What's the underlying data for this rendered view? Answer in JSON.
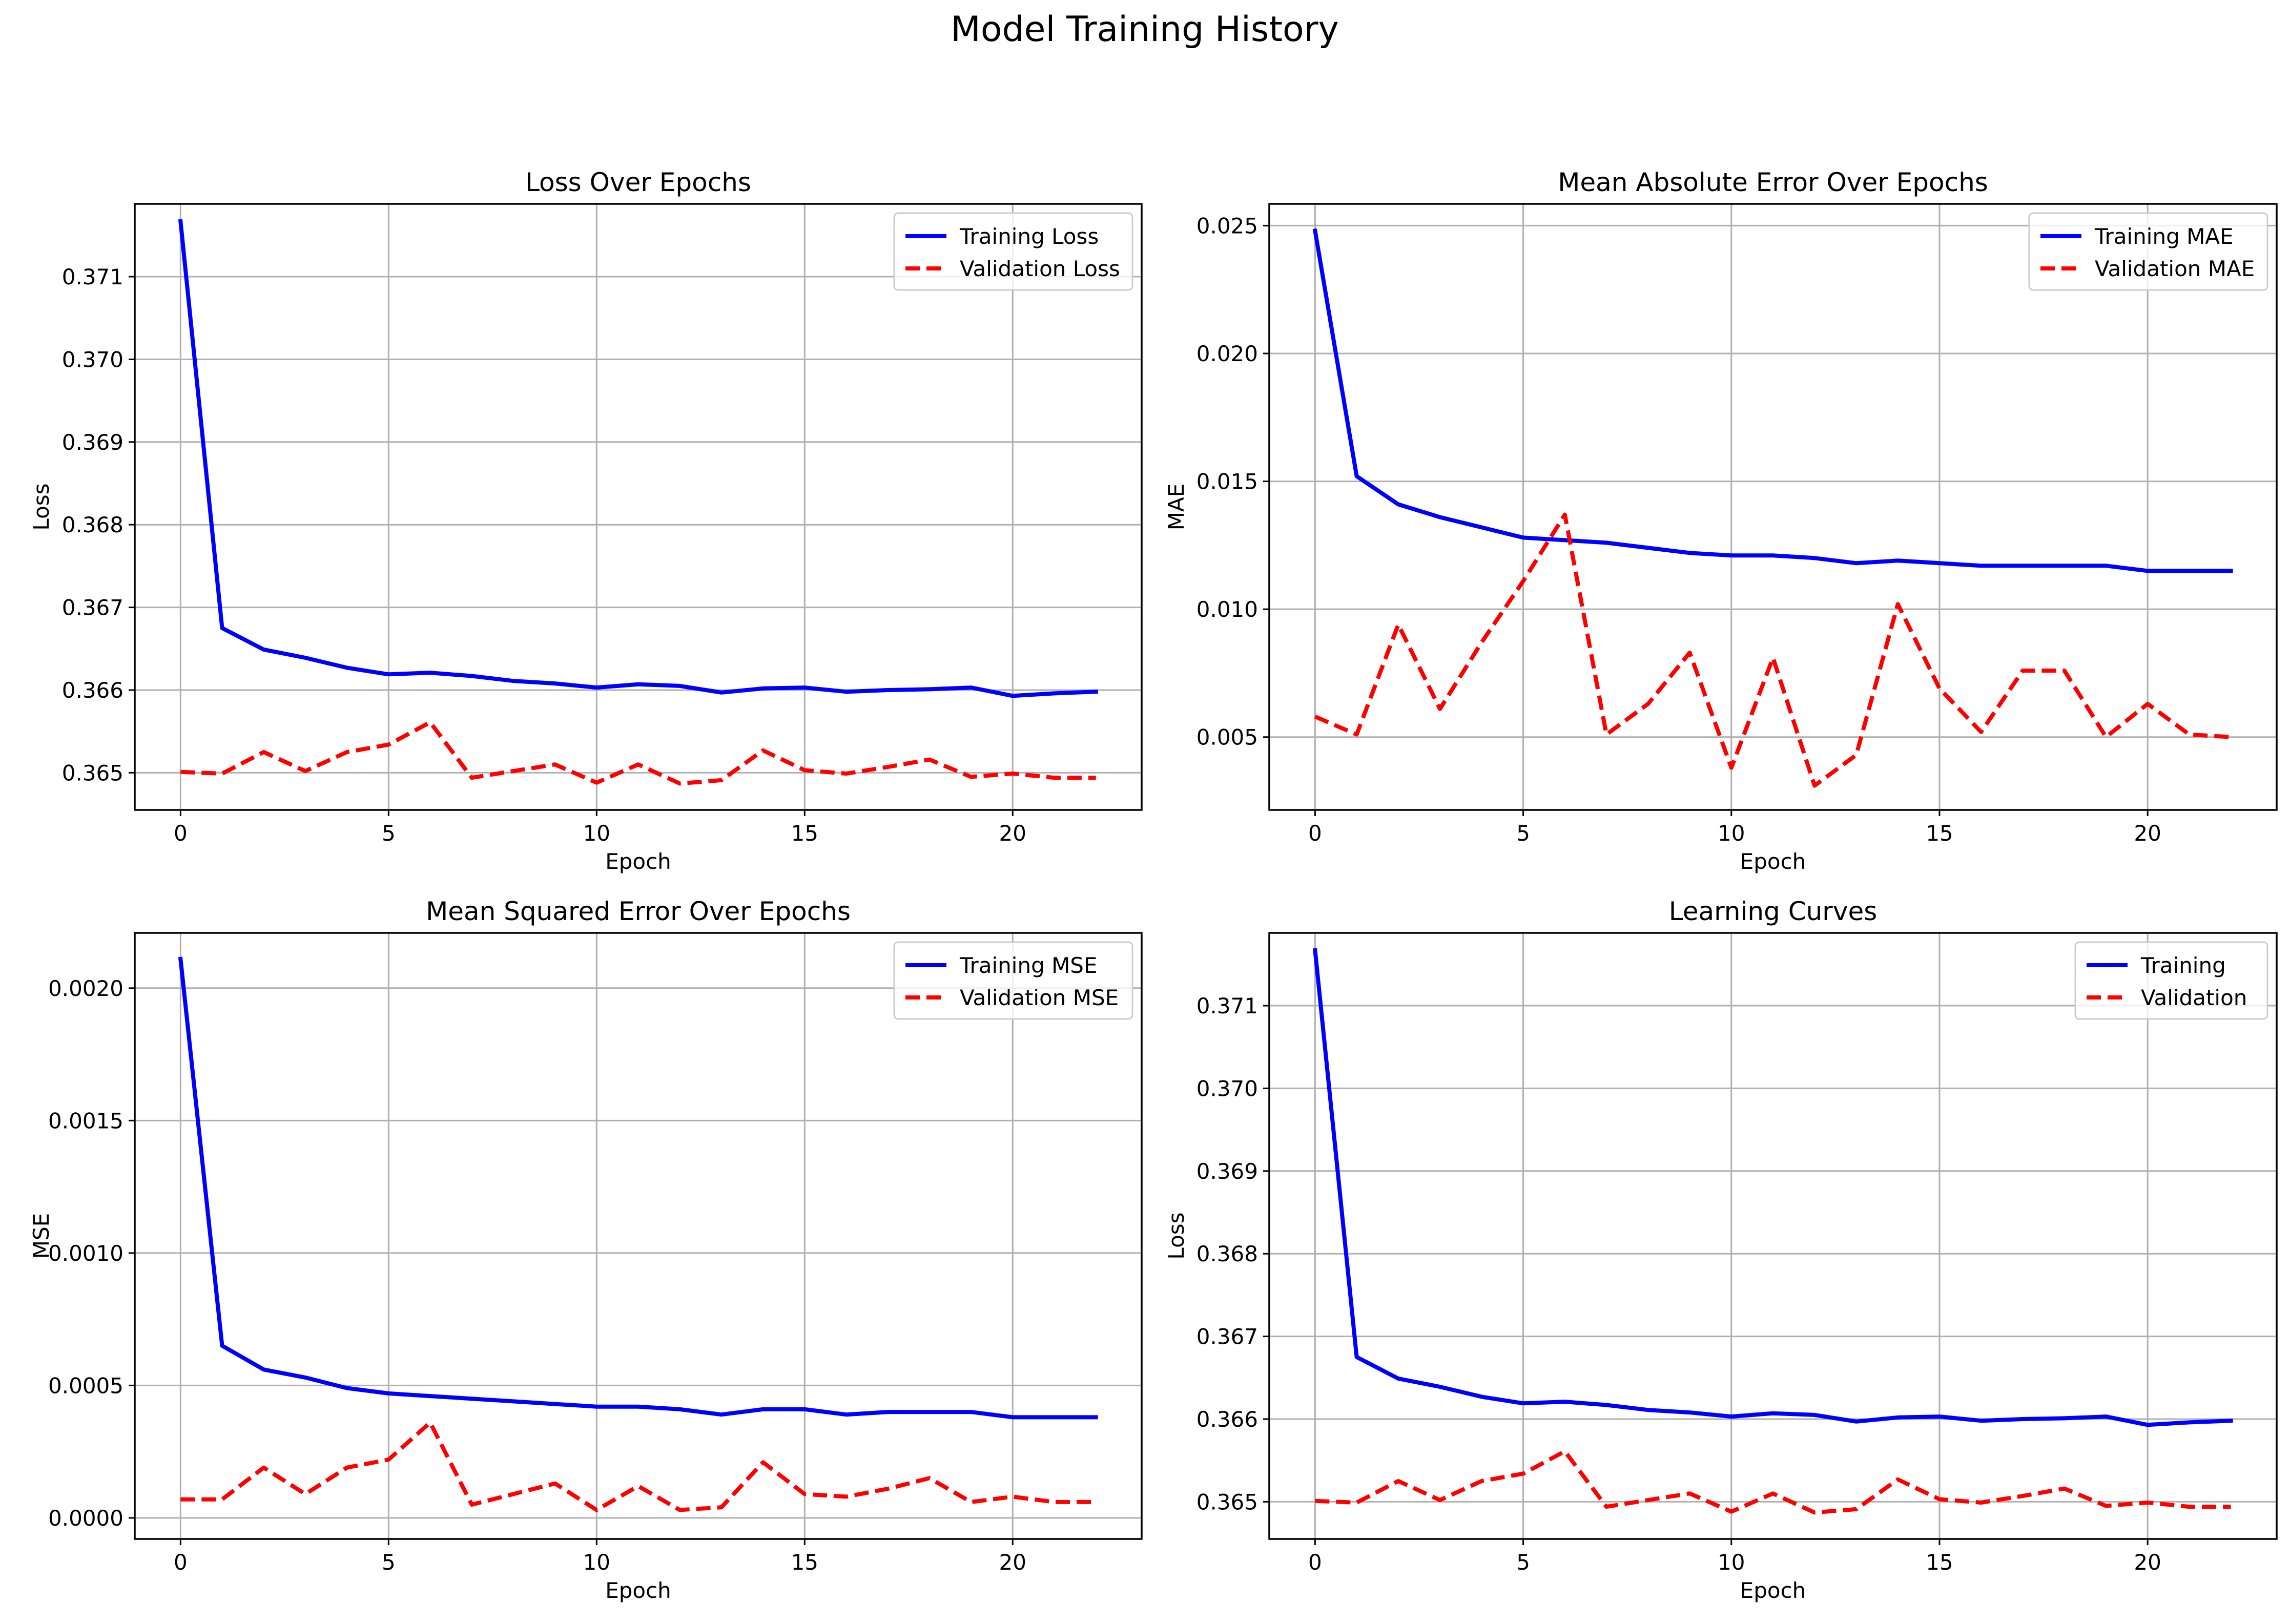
{
  "figure_title": "Model Training History",
  "colors": {
    "training": "#0000ff",
    "validation": "#ff0000"
  },
  "chart_data": [
    {
      "type": "line",
      "title": "Loss Over Epochs",
      "xlabel": "Epoch",
      "ylabel": "Loss",
      "xlim": [
        -1.1,
        23.1
      ],
      "ylim": [
        0.36455,
        0.37188
      ],
      "xticks": [
        0,
        5,
        10,
        15,
        20
      ],
      "xtick_labels": [
        "0",
        "5",
        "10",
        "15",
        "20"
      ],
      "yticks": [
        0.365,
        0.366,
        0.367,
        0.368,
        0.369,
        0.37,
        0.371
      ],
      "ytick_labels": [
        "0.365",
        "0.366",
        "0.367",
        "0.368",
        "0.369",
        "0.370",
        "0.371"
      ],
      "grid": true,
      "legend": "top-right",
      "x": [
        0,
        1,
        2,
        3,
        4,
        5,
        6,
        7,
        8,
        9,
        10,
        11,
        12,
        13,
        14,
        15,
        16,
        17,
        18,
        19,
        20,
        21,
        22
      ],
      "series": [
        {
          "name": "Training Loss",
          "style": "solid",
          "color": "#0000ff",
          "values": [
            0.37167,
            0.36675,
            0.36649,
            0.36639,
            0.36627,
            0.36619,
            0.36621,
            0.36617,
            0.36611,
            0.36608,
            0.36603,
            0.36607,
            0.36605,
            0.36597,
            0.36602,
            0.36603,
            0.36598,
            0.366,
            0.36601,
            0.36603,
            0.36593,
            0.36596,
            0.36598
          ]
        },
        {
          "name": "Validation Loss",
          "style": "dashed",
          "color": "#ff0000",
          "values": [
            0.36501,
            0.36499,
            0.36525,
            0.36502,
            0.36525,
            0.36534,
            0.36561,
            0.36494,
            0.36502,
            0.3651,
            0.36488,
            0.3651,
            0.36487,
            0.36491,
            0.36527,
            0.36503,
            0.36499,
            0.36507,
            0.36516,
            0.36495,
            0.36499,
            0.36494,
            0.36494
          ]
        }
      ]
    },
    {
      "type": "line",
      "title": "Mean Absolute Error Over Epochs",
      "xlabel": "Epoch",
      "ylabel": "MAE",
      "xlim": [
        -1.1,
        23.1
      ],
      "ylim": [
        0.00215,
        0.02585
      ],
      "xticks": [
        0,
        5,
        10,
        15,
        20
      ],
      "xtick_labels": [
        "0",
        "5",
        "10",
        "15",
        "20"
      ],
      "yticks": [
        0.005,
        0.01,
        0.015,
        0.02,
        0.025
      ],
      "ytick_labels": [
        "0.005",
        "0.010",
        "0.015",
        "0.020",
        "0.025"
      ],
      "grid": true,
      "legend": "top-right",
      "x": [
        0,
        1,
        2,
        3,
        4,
        5,
        6,
        7,
        8,
        9,
        10,
        11,
        12,
        13,
        14,
        15,
        16,
        17,
        18,
        19,
        20,
        21,
        22
      ],
      "series": [
        {
          "name": "Training MAE",
          "style": "solid",
          "color": "#0000ff",
          "values": [
            0.0248,
            0.0152,
            0.0141,
            0.0136,
            0.0132,
            0.0128,
            0.0127,
            0.0126,
            0.0124,
            0.0122,
            0.0121,
            0.0121,
            0.012,
            0.0118,
            0.0119,
            0.0118,
            0.0117,
            0.0117,
            0.0117,
            0.0117,
            0.0115,
            0.0115,
            0.0115
          ]
        },
        {
          "name": "Validation MAE",
          "style": "dashed",
          "color": "#ff0000",
          "values": [
            0.0058,
            0.0051,
            0.0094,
            0.0061,
            0.0087,
            0.0111,
            0.0137,
            0.0051,
            0.0063,
            0.0083,
            0.0038,
            0.0081,
            0.0031,
            0.0043,
            0.0102,
            0.0069,
            0.0052,
            0.0076,
            0.0076,
            0.005,
            0.0063,
            0.0051,
            0.005
          ]
        }
      ]
    },
    {
      "type": "line",
      "title": "Mean Squared Error Over Epochs",
      "xlabel": "Epoch",
      "ylabel": "MSE",
      "xlim": [
        -1.1,
        23.1
      ],
      "ylim": [
        -7.95e-05,
        0.0022085
      ],
      "xticks": [
        0,
        5,
        10,
        15,
        20
      ],
      "xtick_labels": [
        "0",
        "5",
        "10",
        "15",
        "20"
      ],
      "yticks": [
        0.0,
        0.0005,
        0.001,
        0.0015,
        0.002
      ],
      "ytick_labels": [
        "0.0000",
        "0.0005",
        "0.0010",
        "0.0015",
        "0.0020"
      ],
      "grid": true,
      "legend": "top-right",
      "x": [
        0,
        1,
        2,
        3,
        4,
        5,
        6,
        7,
        8,
        9,
        10,
        11,
        12,
        13,
        14,
        15,
        16,
        17,
        18,
        19,
        20,
        21,
        22
      ],
      "series": [
        {
          "name": "Training MSE",
          "style": "solid",
          "color": "#0000ff",
          "values": [
            0.00211,
            0.00065,
            0.00056,
            0.00053,
            0.00049,
            0.00047,
            0.00046,
            0.00045,
            0.00044,
            0.00043,
            0.00042,
            0.00042,
            0.00041,
            0.00039,
            0.00041,
            0.00041,
            0.00039,
            0.0004,
            0.0004,
            0.0004,
            0.00038,
            0.00038,
            0.00038
          ]
        },
        {
          "name": "Validation MSE",
          "style": "dashed",
          "color": "#ff0000",
          "values": [
            7e-05,
            7e-05,
            0.00019,
            9e-05,
            0.00019,
            0.00022,
            0.00036,
            5e-05,
            9e-05,
            0.00013,
            3e-05,
            0.00012,
            3e-05,
            4e-05,
            0.00021,
            9e-05,
            8e-05,
            0.00011,
            0.00015,
            6e-05,
            8e-05,
            6e-05,
            6e-05
          ]
        }
      ]
    },
    {
      "type": "line",
      "title": "Learning Curves",
      "xlabel": "Epoch",
      "ylabel": "Loss",
      "xlim": [
        -1.1,
        23.1
      ],
      "ylim": [
        0.36455,
        0.37188
      ],
      "xticks": [
        0,
        5,
        10,
        15,
        20
      ],
      "xtick_labels": [
        "0",
        "5",
        "10",
        "15",
        "20"
      ],
      "yticks": [
        0.365,
        0.366,
        0.367,
        0.368,
        0.369,
        0.37,
        0.371
      ],
      "ytick_labels": [
        "0.365",
        "0.366",
        "0.367",
        "0.368",
        "0.369",
        "0.370",
        "0.371"
      ],
      "grid": true,
      "legend": "top-right",
      "x": [
        0,
        1,
        2,
        3,
        4,
        5,
        6,
        7,
        8,
        9,
        10,
        11,
        12,
        13,
        14,
        15,
        16,
        17,
        18,
        19,
        20,
        21,
        22
      ],
      "series": [
        {
          "name": "Training",
          "style": "solid",
          "color": "#0000ff",
          "values": [
            0.37167,
            0.36675,
            0.36649,
            0.36639,
            0.36627,
            0.36619,
            0.36621,
            0.36617,
            0.36611,
            0.36608,
            0.36603,
            0.36607,
            0.36605,
            0.36597,
            0.36602,
            0.36603,
            0.36598,
            0.366,
            0.36601,
            0.36603,
            0.36593,
            0.36596,
            0.36598
          ]
        },
        {
          "name": "Validation",
          "style": "dashed",
          "color": "#ff0000",
          "values": [
            0.36501,
            0.36499,
            0.36525,
            0.36502,
            0.36525,
            0.36534,
            0.36561,
            0.36494,
            0.36502,
            0.3651,
            0.36488,
            0.3651,
            0.36487,
            0.36491,
            0.36527,
            0.36503,
            0.36499,
            0.36507,
            0.36516,
            0.36495,
            0.36499,
            0.36494,
            0.36494
          ]
        }
      ]
    }
  ]
}
